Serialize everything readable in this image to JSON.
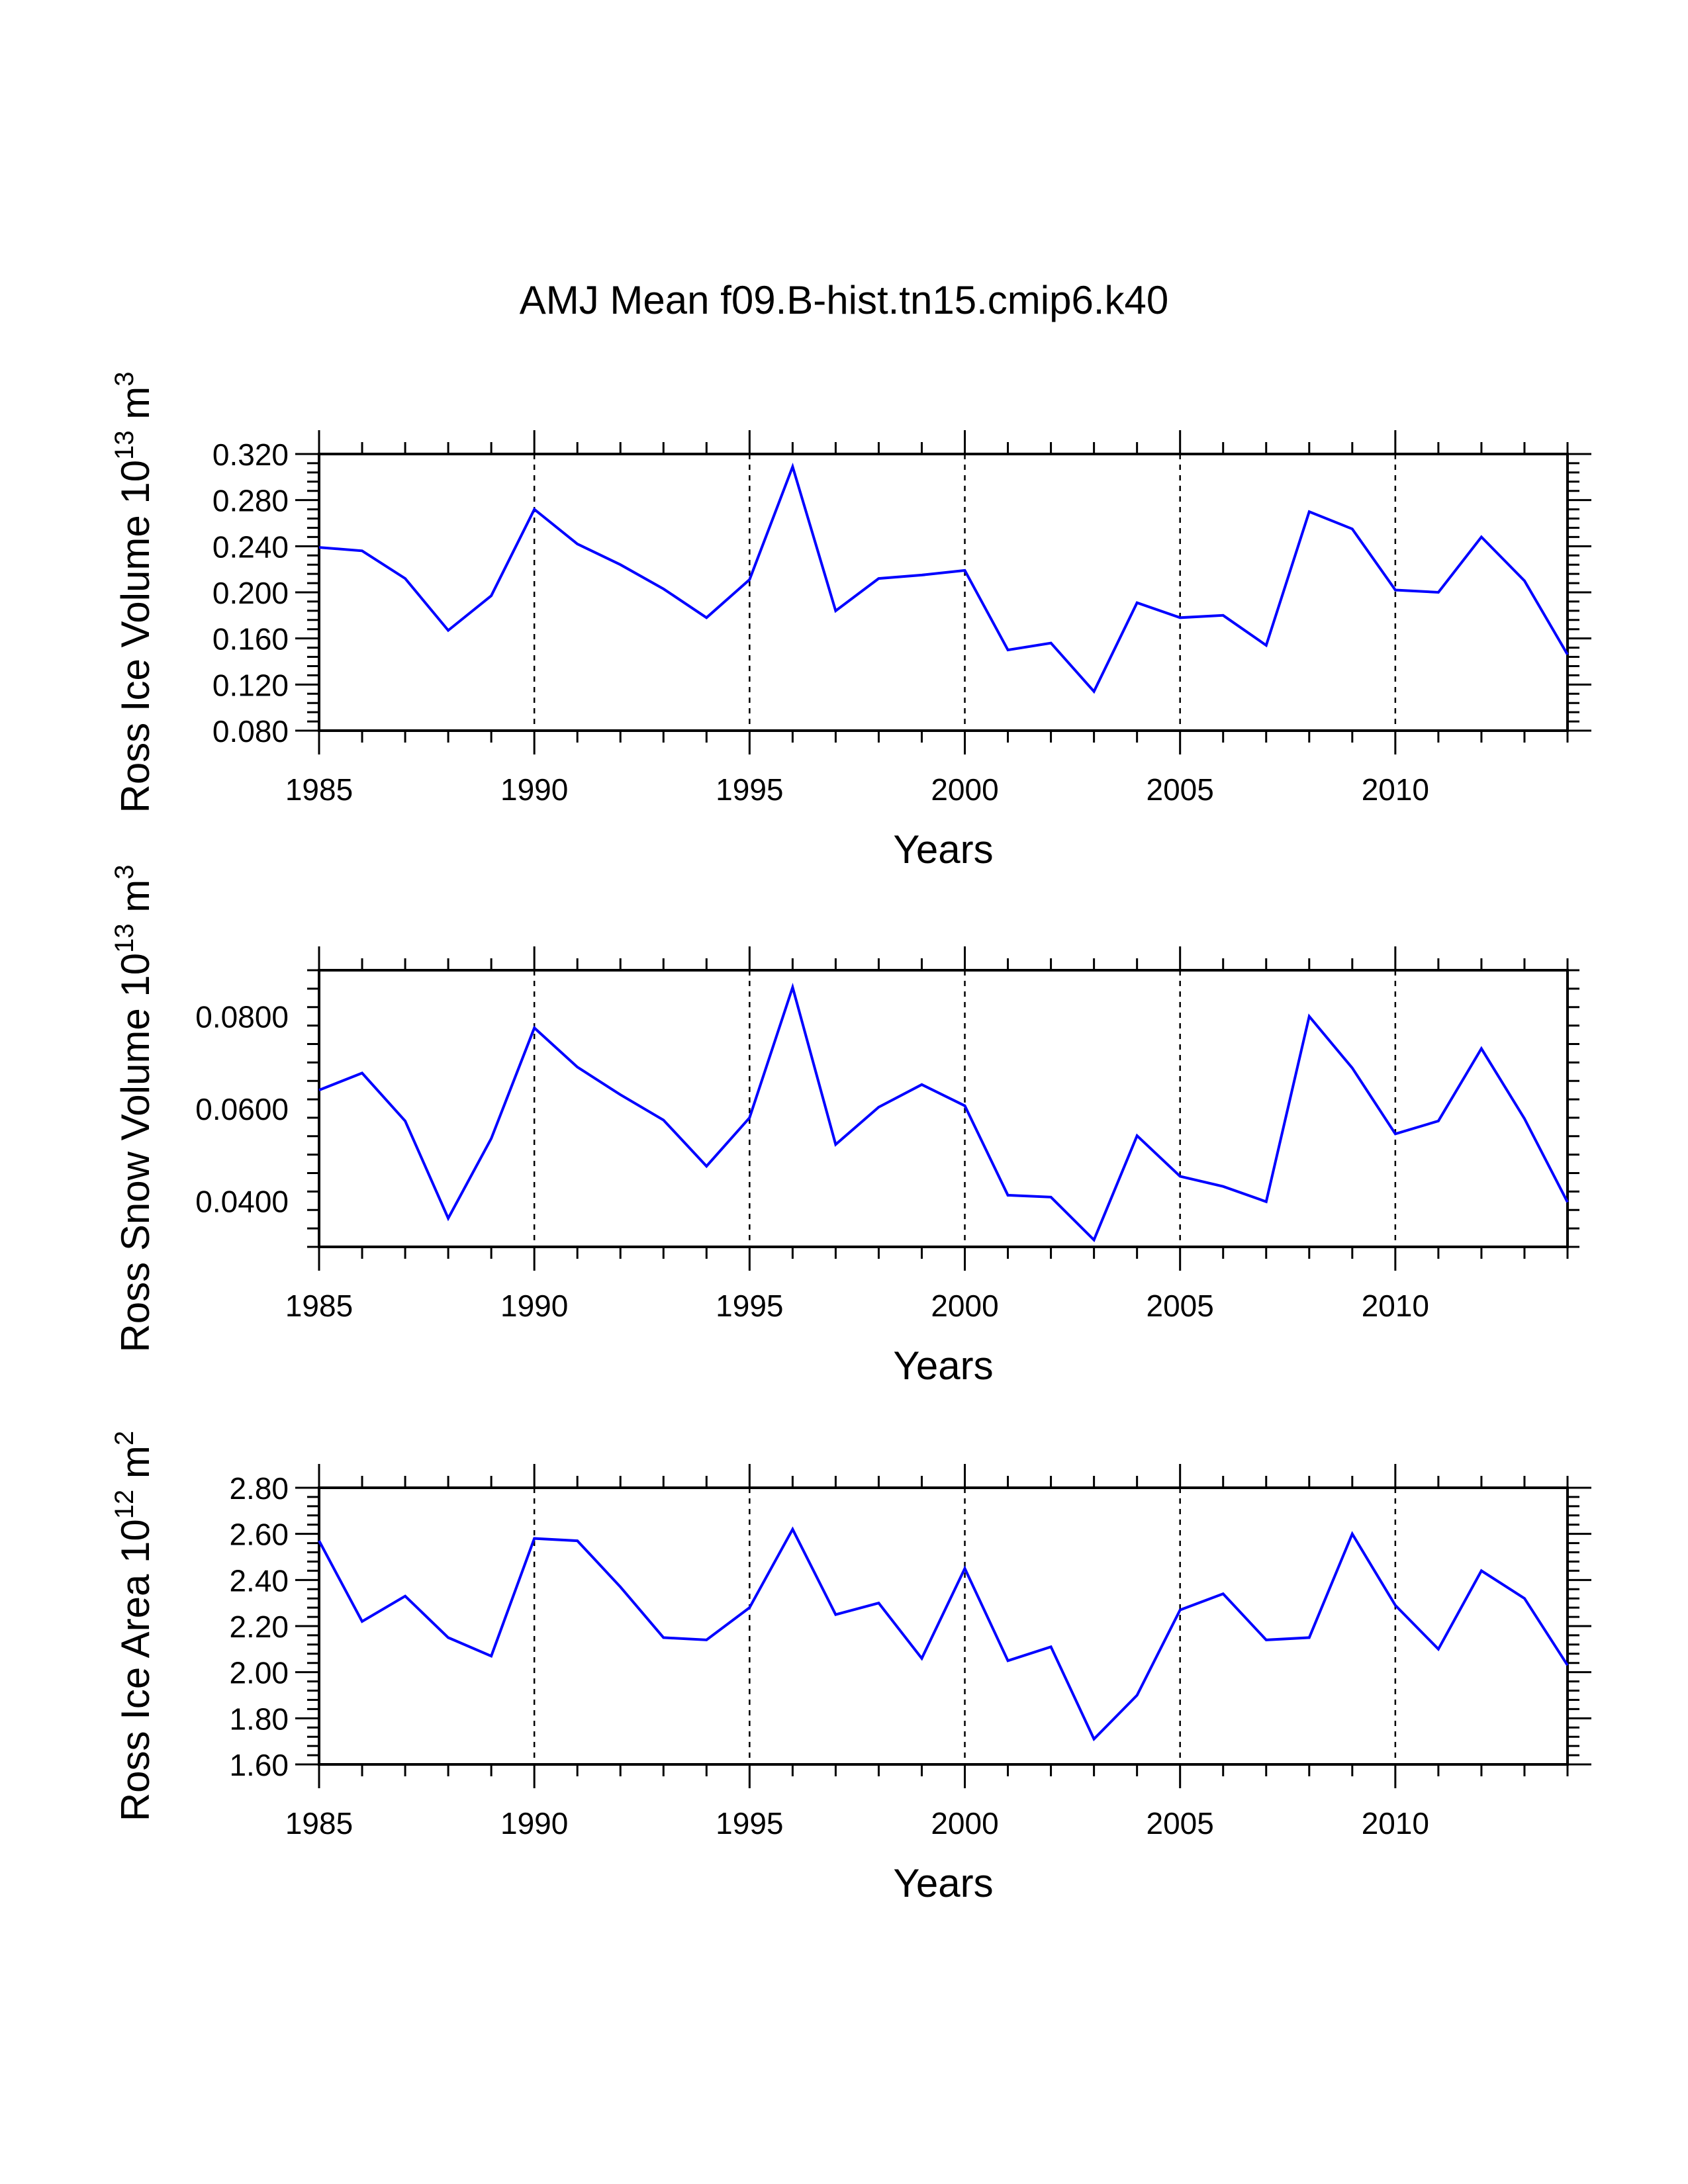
{
  "figure": {
    "title": "AMJ Mean f09.B-hist.tn15.cmip6.k40"
  },
  "chart_data": [
    {
      "type": "line",
      "title": "",
      "ylabel_main": "Ross Ice Volume 10",
      "ylabel_exp": "13",
      "ylabel_unit": " m",
      "ylabel_unit_exp": "3",
      "xlabel": "Years",
      "xlim": [
        1985,
        2014
      ],
      "ylim": [
        0.08,
        0.32
      ],
      "yticks": [
        0.08,
        0.12,
        0.16,
        0.2,
        0.24,
        0.28,
        0.32
      ],
      "ytick_labels": [
        "0.080",
        "0.120",
        "0.160",
        "0.200",
        "0.240",
        "0.280",
        "0.320"
      ],
      "xticks": [
        1985,
        1990,
        1995,
        2000,
        2005,
        2010
      ],
      "xtick_labels": [
        "1985",
        "1990",
        "1995",
        "2000",
        "2005",
        "2010"
      ],
      "color": "#0000ff",
      "x": [
        1985,
        1986,
        1987,
        1988,
        1989,
        1990,
        1991,
        1992,
        1993,
        1994,
        1995,
        1996,
        1997,
        1998,
        1999,
        2000,
        2001,
        2002,
        2003,
        2004,
        2005,
        2006,
        2007,
        2008,
        2009,
        2010,
        2011,
        2012,
        2013,
        2014
      ],
      "y": [
        0.239,
        0.236,
        0.212,
        0.167,
        0.197,
        0.272,
        0.242,
        0.224,
        0.203,
        0.178,
        0.211,
        0.309,
        0.184,
        0.212,
        0.215,
        0.219,
        0.15,
        0.156,
        0.114,
        0.191,
        0.178,
        0.18,
        0.154,
        0.27,
        0.255,
        0.202,
        0.2,
        0.248,
        0.21,
        0.146
      ]
    },
    {
      "type": "line",
      "title": "",
      "ylabel_main": "Ross Snow Volume 10",
      "ylabel_exp": "13",
      "ylabel_unit": " m",
      "ylabel_unit_exp": "3",
      "xlabel": "Years",
      "xlim": [
        1985,
        2014
      ],
      "ylim": [
        0.03,
        0.09
      ],
      "yticks": [
        0.04,
        0.06,
        0.08
      ],
      "ytick_labels": [
        "0.0400",
        "0.0600",
        "0.0800"
      ],
      "xticks": [
        1985,
        1990,
        1995,
        2000,
        2005,
        2010
      ],
      "xtick_labels": [
        "1985",
        "1990",
        "1995",
        "2000",
        "2005",
        "2010"
      ],
      "color": "#0000ff",
      "x": [
        1985,
        1986,
        1987,
        1988,
        1989,
        1990,
        1991,
        1992,
        1993,
        1994,
        1995,
        1996,
        1997,
        1998,
        1999,
        2000,
        2001,
        2002,
        2003,
        2004,
        2005,
        2006,
        2007,
        2008,
        2009,
        2010,
        2011,
        2012,
        2013,
        2014
      ],
      "y": [
        0.064,
        0.0677,
        0.0573,
        0.0362,
        0.0535,
        0.0775,
        0.069,
        0.063,
        0.0575,
        0.0475,
        0.058,
        0.0863,
        0.0522,
        0.0603,
        0.0652,
        0.0606,
        0.0412,
        0.0408,
        0.0315,
        0.0541,
        0.0453,
        0.0431,
        0.0398,
        0.08,
        0.0688,
        0.0545,
        0.0573,
        0.073,
        0.0578,
        0.0397
      ]
    },
    {
      "type": "line",
      "title": "",
      "ylabel_main": "Ross Ice Area 10",
      "ylabel_exp": "12",
      "ylabel_unit": " m",
      "ylabel_unit_exp": "2",
      "xlabel": "Years",
      "xlim": [
        1985,
        2014
      ],
      "ylim": [
        1.6,
        2.8
      ],
      "yticks": [
        1.6,
        1.8,
        2.0,
        2.2,
        2.4,
        2.6,
        2.8
      ],
      "ytick_labels": [
        "1.60",
        "1.80",
        "2.00",
        "2.20",
        "2.40",
        "2.60",
        "2.80"
      ],
      "xticks": [
        1985,
        1990,
        1995,
        2000,
        2005,
        2010
      ],
      "xtick_labels": [
        "1985",
        "1990",
        "1995",
        "2000",
        "2005",
        "2010"
      ],
      "color": "#0000ff",
      "x": [
        1985,
        1986,
        1987,
        1988,
        1989,
        1990,
        1991,
        1992,
        1993,
        1994,
        1995,
        1996,
        1997,
        1998,
        1999,
        2000,
        2001,
        2002,
        2003,
        2004,
        2005,
        2006,
        2007,
        2008,
        2009,
        2010,
        2011,
        2012,
        2013,
        2014
      ],
      "y": [
        2.57,
        2.22,
        2.33,
        2.15,
        2.07,
        2.58,
        2.57,
        2.37,
        2.15,
        2.14,
        2.28,
        2.62,
        2.25,
        2.3,
        2.06,
        2.45,
        2.05,
        2.11,
        1.71,
        1.9,
        2.27,
        2.34,
        2.14,
        2.15,
        2.6,
        2.29,
        2.1,
        2.44,
        2.32,
        2.03
      ]
    }
  ]
}
